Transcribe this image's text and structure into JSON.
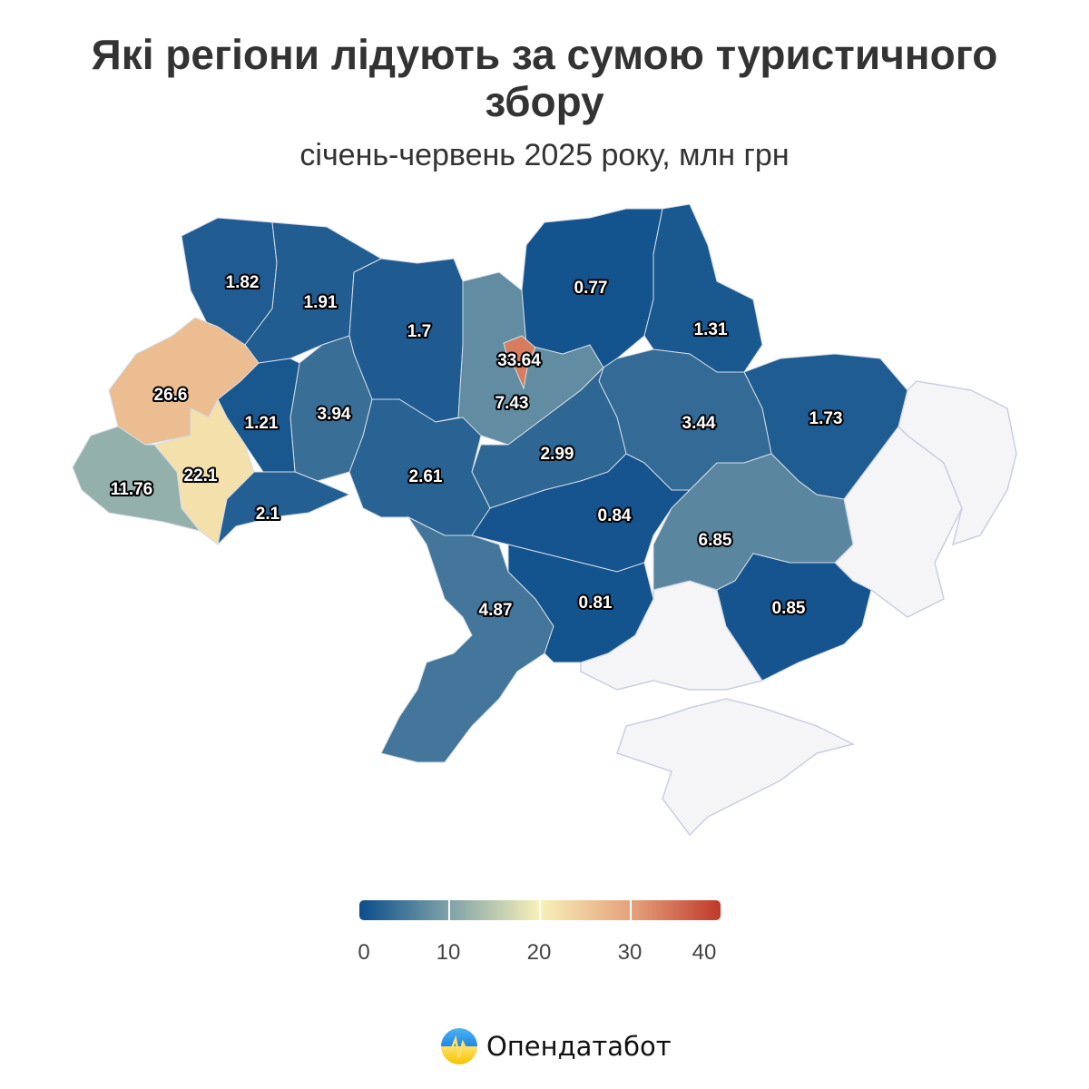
{
  "title": "Які регіони лідують за сумою туристичного збору",
  "subtitle": "січень-червень 2025 року, млн грн",
  "colors": {
    "scale": [
      "#0b4d8c",
      "#7fa2a8",
      "#f7f0b8",
      "#e6a27c",
      "#c0392b"
    ],
    "no_data": "#f5f5f7",
    "border": "#c9cfe0"
  },
  "chart_data": {
    "type": "choropleth",
    "unit": "млн грн",
    "values": [
      "1.82",
      "1.91",
      "1.7",
      "7.43",
      "33.64",
      "0.77",
      "1.31",
      "1.73",
      "3.44",
      "2.99",
      "2.61",
      "3.94",
      "1.21",
      "26.6",
      "22.1",
      "11.76",
      "2.1",
      "4.87",
      "0.84",
      "0.81",
      "6.85",
      "0.85"
    ],
    "no_data_regions": 4,
    "range": [
      0,
      40
    ]
  },
  "legend": {
    "ticks": [
      "0",
      "10",
      "20",
      "30",
      "40"
    ]
  },
  "logo": {
    "text": "Опендатабот"
  }
}
